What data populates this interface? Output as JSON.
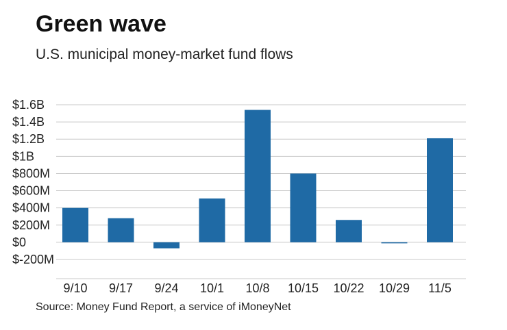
{
  "header": {
    "title": "Green wave",
    "subtitle": "U.S. municipal money-market fund flows"
  },
  "footer": {
    "source": "Source: Money Fund Report, a service of iMoneyNet"
  },
  "colors": {
    "bar": "#1f6aa5",
    "grid": "#c8c8c8"
  },
  "chart_data": {
    "type": "bar",
    "title": "Green wave",
    "subtitle": "U.S. municipal money-market fund flows",
    "xlabel": "",
    "ylabel": "",
    "unit": "USD",
    "categories": [
      "9/10",
      "9/17",
      "9/24",
      "10/1",
      "10/8",
      "10/15",
      "10/22",
      "10/29",
      "11/5"
    ],
    "values": [
      400000000,
      280000000,
      -70000000,
      510000000,
      1540000000,
      800000000,
      260000000,
      -10000000,
      1210000000
    ],
    "ylim": [
      -200000000,
      1600000000
    ],
    "yticks": [
      1600000000,
      1400000000,
      1200000000,
      1000000000,
      800000000,
      600000000,
      400000000,
      200000000,
      0,
      -200000000
    ],
    "ytick_labels": [
      "$1.6B",
      "$1.4B",
      "$1.2B",
      "$1B",
      "$800M",
      "$600M",
      "$400M",
      "$200M",
      "$0",
      "$-200M"
    ],
    "grid": true,
    "legend": "none"
  }
}
